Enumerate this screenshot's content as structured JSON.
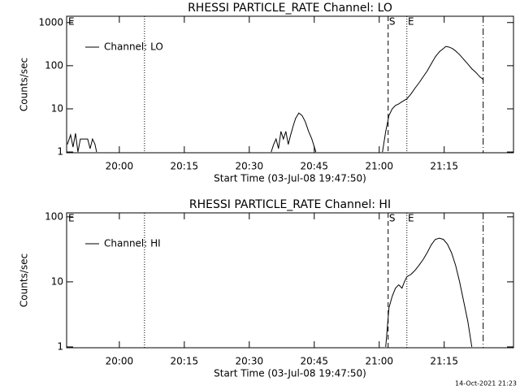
{
  "chart_data": [
    {
      "type": "line",
      "title": "RHESSI PARTICLE_RATE Channel: LO",
      "y_label": "Counts/sec",
      "x_label": "Start Time (03-Jul-08 19:47:50)",
      "corner_label": "E",
      "ylog": true,
      "legend": "upper left",
      "xlim": [
        1187.83,
        1291.0
      ],
      "ylim": [
        0.96,
        1400
      ],
      "xticks": [
        {
          "value": 1200,
          "label": "20:00"
        },
        {
          "value": 1215,
          "label": "20:15"
        },
        {
          "value": 1230,
          "label": "20:30"
        },
        {
          "value": 1245,
          "label": "20:45"
        },
        {
          "value": 1260,
          "label": "21:00"
        },
        {
          "value": 1275,
          "label": "21:15"
        }
      ],
      "yticks": [
        1,
        10,
        100,
        1000
      ],
      "markers": [
        {
          "x": 1205.81,
          "style": "dotted"
        },
        {
          "x": 1262.06,
          "style": "dashed",
          "label": "S"
        },
        {
          "x": 1266.38,
          "style": "dotted",
          "label": "E"
        },
        {
          "x": 1284.0,
          "style": "dashdot"
        }
      ],
      "x": [
        1188.0,
        1188.75,
        1189.31,
        1189.88,
        1190.44,
        1191.0,
        1191.56,
        1192.13,
        1192.69,
        1193.25,
        1193.81,
        1194.38,
        1194.75,
        1215.0,
        1235.06,
        1235.63,
        1236.19,
        1236.75,
        1237.31,
        1237.88,
        1238.44,
        1239.0,
        1239.56,
        1240.13,
        1240.69,
        1241.44,
        1242.19,
        1242.94,
        1243.69,
        1244.44,
        1245.38,
        1253.0,
        1260.75,
        1261.5,
        1262.25,
        1263.0,
        1263.75,
        1264.5,
        1265.44,
        1266.38,
        1267.31,
        1268.25,
        1269.19,
        1270.13,
        1271.06,
        1272.0,
        1272.94,
        1273.88,
        1274.81,
        1275.38,
        1276.13,
        1276.88,
        1277.63,
        1278.56,
        1279.5,
        1280.44,
        1281.38,
        1282.31,
        1283.25,
        1284.0
      ],
      "series": [
        {
          "name": "Channel: LO",
          "color": "#000000",
          "values": [
            1.5,
            2.5,
            1.3,
            2.7,
            1.0,
            2.0,
            2.0,
            2.0,
            2.0,
            1.2,
            2.0,
            1.5,
            1.0,
            null,
            1.0,
            1.5,
            2.0,
            1.2,
            3.0,
            2.0,
            3.0,
            1.5,
            2.5,
            4.0,
            6.0,
            8.0,
            7.0,
            5.0,
            3.0,
            2.0,
            1.0,
            null,
            1.0,
            3.0,
            7.0,
            10.0,
            12.0,
            13.0,
            15.0,
            17.0,
            22.0,
            30.0,
            40.0,
            55.0,
            75.0,
            110.0,
            160.0,
            210.0,
            250.0,
            280.0,
            270.0,
            250.0,
            220.0,
            180.0,
            140.0,
            110.0,
            85.0,
            70.0,
            55.0,
            48.0
          ]
        }
      ]
    },
    {
      "type": "line",
      "title": "RHESSI PARTICLE_RATE Channel: HI",
      "y_label": "Counts/sec",
      "x_label": "Start Time (03-Jul-08 19:47:50)",
      "corner_label": "E",
      "ylog": true,
      "legend": "upper left",
      "xlim": [
        1187.83,
        1291.0
      ],
      "ylim": [
        0.97,
        115
      ],
      "xticks": [
        {
          "value": 1200,
          "label": "20:00"
        },
        {
          "value": 1215,
          "label": "20:15"
        },
        {
          "value": 1230,
          "label": "20:30"
        },
        {
          "value": 1245,
          "label": "20:45"
        },
        {
          "value": 1260,
          "label": "21:00"
        },
        {
          "value": 1275,
          "label": "21:15"
        }
      ],
      "yticks": [
        1,
        10,
        100
      ],
      "markers": [
        {
          "x": 1205.81,
          "style": "dotted"
        },
        {
          "x": 1262.06,
          "style": "dashed",
          "label": "S"
        },
        {
          "x": 1266.38,
          "style": "dotted",
          "label": "E"
        },
        {
          "x": 1284.0,
          "style": "dashdot"
        }
      ],
      "x": [
        1261.5,
        1262.25,
        1263.0,
        1263.75,
        1264.5,
        1265.25,
        1265.81,
        1266.38,
        1267.31,
        1268.25,
        1269.19,
        1270.13,
        1271.06,
        1272.0,
        1272.94,
        1273.88,
        1274.81,
        1275.75,
        1276.69,
        1277.63,
        1278.56,
        1279.5,
        1280.44,
        1281.38
      ],
      "series": [
        {
          "name": "Channel: HI",
          "color": "#000000",
          "values": [
            1.0,
            4.0,
            6.0,
            8.0,
            9.0,
            8.0,
            10.0,
            12.0,
            13.0,
            15.0,
            18.0,
            22.0,
            28.0,
            37.0,
            45.0,
            47.0,
            45.0,
            38.0,
            28.0,
            18.0,
            10.0,
            5.0,
            2.5,
            1.0
          ]
        }
      ]
    }
  ],
  "timestamp": "14-Oct-2021 21:23"
}
